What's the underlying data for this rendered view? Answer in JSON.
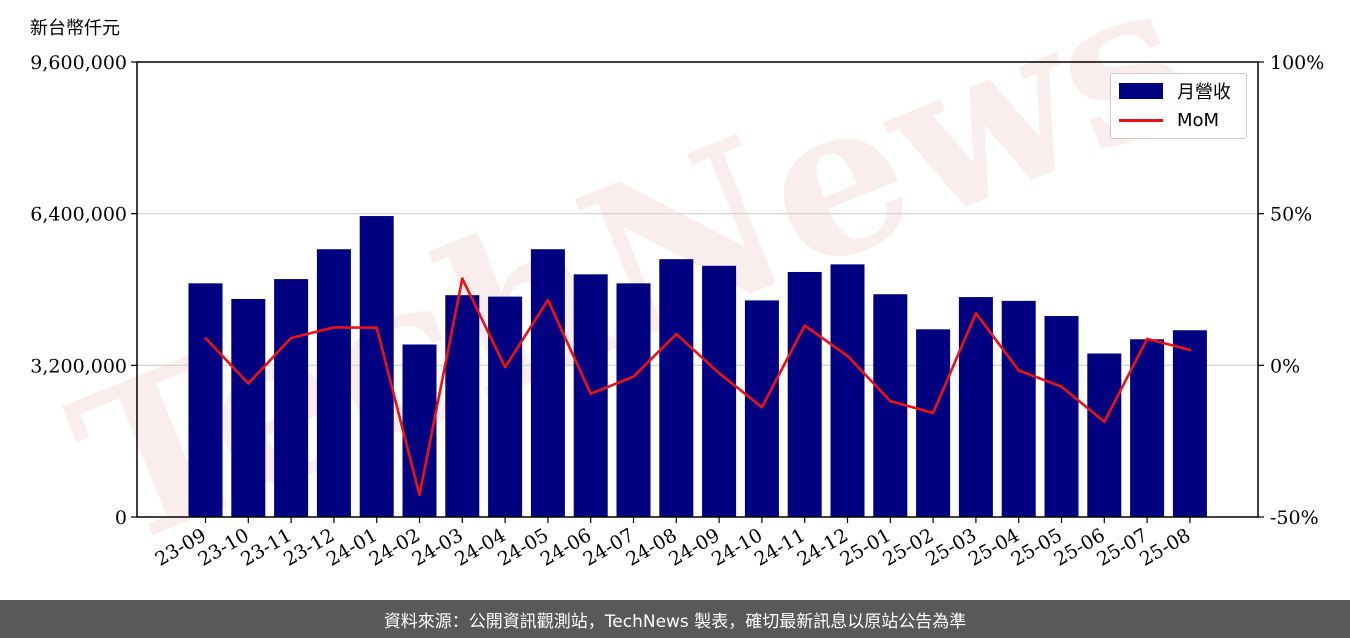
{
  "chart_data": {
    "type": "bar",
    "y_unit_label": "新台幣仟元",
    "categories": [
      "23-09",
      "23-10",
      "23-11",
      "23-12",
      "24-01",
      "24-02",
      "24-03",
      "24-04",
      "24-05",
      "24-06",
      "24-07",
      "24-08",
      "24-09",
      "24-10",
      "24-11",
      "24-12",
      "25-01",
      "25-02",
      "25-03",
      "25-04",
      "25-05",
      "25-06",
      "25-07",
      "25-08"
    ],
    "series": [
      {
        "name": "月營收",
        "axis": "left",
        "type": "bar",
        "color": "#000080",
        "values": [
          4930000,
          4600000,
          5020000,
          5650000,
          6350000,
          3640000,
          4680000,
          4650000,
          5650000,
          5120000,
          4930000,
          5440000,
          5300000,
          4570000,
          5170000,
          5330000,
          4700000,
          3960000,
          4640000,
          4560000,
          4240000,
          3450000,
          3750000,
          3940000
        ]
      },
      {
        "name": "MoM",
        "axis": "right",
        "type": "line",
        "color": "#ee1111",
        "values": [
          9,
          -6,
          9,
          12.5,
          12.4,
          -42.7,
          28.6,
          -0.6,
          21.5,
          -9.4,
          -3.7,
          10.3,
          -2.6,
          -13.8,
          13.1,
          3.1,
          -11.8,
          -15.7,
          17.2,
          -1.7,
          -7,
          -18.6,
          8.7,
          5.1
        ]
      }
    ],
    "y_left": {
      "ylim": [
        0,
        9600000
      ],
      "ticks": [
        0,
        3200000,
        6400000,
        9600000
      ],
      "tick_labels": [
        "0",
        "3,200,000",
        "6,400,000",
        "9,600,000"
      ]
    },
    "y_right": {
      "ylim": [
        -50,
        100
      ],
      "ticks": [
        -50,
        0,
        50,
        100
      ],
      "tick_labels": [
        "-50%",
        "0%",
        "50%",
        "100%"
      ]
    },
    "grid": "horizontal",
    "legend": {
      "placement": "top-right",
      "entries": [
        "月營收",
        "MoM"
      ]
    }
  },
  "watermark": "TechNews",
  "footer": {
    "text": "資料來源：公開資訊觀測站，TechNews 製表，確切最新訊息以原站公告為準"
  }
}
